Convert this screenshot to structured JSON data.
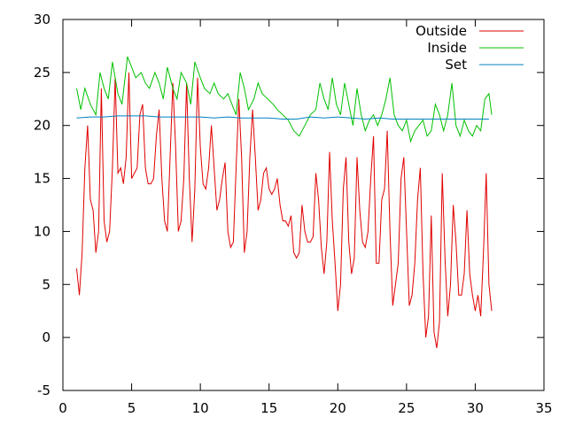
{
  "chart_data": {
    "type": "line",
    "title": "",
    "xlabel": "",
    "ylabel": "",
    "xlim": [
      0,
      35
    ],
    "ylim": [
      -5,
      30
    ],
    "xticks": [
      0,
      5,
      10,
      15,
      20,
      25,
      30,
      35
    ],
    "yticks": [
      -5,
      0,
      5,
      10,
      15,
      20,
      25,
      30
    ],
    "grid": false,
    "legend_position": "top-right",
    "series": [
      {
        "name": "Outside",
        "color": "#e00000",
        "points": [
          [
            1.0,
            6.5
          ],
          [
            1.2,
            4.0
          ],
          [
            1.4,
            8.0
          ],
          [
            1.6,
            16.0
          ],
          [
            1.8,
            20.0
          ],
          [
            2.0,
            13.0
          ],
          [
            2.2,
            12.0
          ],
          [
            2.4,
            8.0
          ],
          [
            2.6,
            10.0
          ],
          [
            2.8,
            23.5
          ],
          [
            3.0,
            11.0
          ],
          [
            3.2,
            9.0
          ],
          [
            3.4,
            10.0
          ],
          [
            3.6,
            16.0
          ],
          [
            3.8,
            24.5
          ],
          [
            4.0,
            15.5
          ],
          [
            4.2,
            16.0
          ],
          [
            4.4,
            14.5
          ],
          [
            4.6,
            17.0
          ],
          [
            4.8,
            25.0
          ],
          [
            5.0,
            15.0
          ],
          [
            5.2,
            15.5
          ],
          [
            5.4,
            16.0
          ],
          [
            5.6,
            21.0
          ],
          [
            5.8,
            22.0
          ],
          [
            6.0,
            16.0
          ],
          [
            6.2,
            14.5
          ],
          [
            6.4,
            14.5
          ],
          [
            6.6,
            15.0
          ],
          [
            6.8,
            19.0
          ],
          [
            7.0,
            21.5
          ],
          [
            7.2,
            15.0
          ],
          [
            7.4,
            11.0
          ],
          [
            7.6,
            10.0
          ],
          [
            7.8,
            17.0
          ],
          [
            8.0,
            24.0
          ],
          [
            8.2,
            18.0
          ],
          [
            8.4,
            10.0
          ],
          [
            8.6,
            11.0
          ],
          [
            8.8,
            15.0
          ],
          [
            9.0,
            24.0
          ],
          [
            9.2,
            15.0
          ],
          [
            9.4,
            9.0
          ],
          [
            9.6,
            14.0
          ],
          [
            9.8,
            24.5
          ],
          [
            10.0,
            18.0
          ],
          [
            10.2,
            14.5
          ],
          [
            10.4,
            14.0
          ],
          [
            10.6,
            16.0
          ],
          [
            10.8,
            20.0
          ],
          [
            11.0,
            16.0
          ],
          [
            11.2,
            12.0
          ],
          [
            11.4,
            13.0
          ],
          [
            11.6,
            15.0
          ],
          [
            11.8,
            16.5
          ],
          [
            12.0,
            10.0
          ],
          [
            12.2,
            8.5
          ],
          [
            12.4,
            9.0
          ],
          [
            12.6,
            16.0
          ],
          [
            12.8,
            22.5
          ],
          [
            13.0,
            17.0
          ],
          [
            13.2,
            8.0
          ],
          [
            13.4,
            10.0
          ],
          [
            13.6,
            17.0
          ],
          [
            13.8,
            21.5
          ],
          [
            14.0,
            17.0
          ],
          [
            14.2,
            12.0
          ],
          [
            14.4,
            13.0
          ],
          [
            14.6,
            15.5
          ],
          [
            14.8,
            16.0
          ],
          [
            15.0,
            14.0
          ],
          [
            15.2,
            13.5
          ],
          [
            15.4,
            14.0
          ],
          [
            15.6,
            15.0
          ],
          [
            15.8,
            12.5
          ],
          [
            16.0,
            11.0
          ],
          [
            16.2,
            11.0
          ],
          [
            16.4,
            10.5
          ],
          [
            16.6,
            11.5
          ],
          [
            16.8,
            8.0
          ],
          [
            17.0,
            7.5
          ],
          [
            17.2,
            8.0
          ],
          [
            17.4,
            12.5
          ],
          [
            17.6,
            10.0
          ],
          [
            17.8,
            9.0
          ],
          [
            18.0,
            9.0
          ],
          [
            18.2,
            9.5
          ],
          [
            18.4,
            15.5
          ],
          [
            18.6,
            13.0
          ],
          [
            18.8,
            8.5
          ],
          [
            19.0,
            6.0
          ],
          [
            19.2,
            9.0
          ],
          [
            19.4,
            17.5
          ],
          [
            19.6,
            11.0
          ],
          [
            19.8,
            7.0
          ],
          [
            20.0,
            2.5
          ],
          [
            20.2,
            5.0
          ],
          [
            20.4,
            14.0
          ],
          [
            20.6,
            17.0
          ],
          [
            20.8,
            9.0
          ],
          [
            21.0,
            6.0
          ],
          [
            21.2,
            7.5
          ],
          [
            21.4,
            17.0
          ],
          [
            21.6,
            12.0
          ],
          [
            21.8,
            9.0
          ],
          [
            22.0,
            8.5
          ],
          [
            22.2,
            10.0
          ],
          [
            22.4,
            15.0
          ],
          [
            22.6,
            19.0
          ],
          [
            22.8,
            7.0
          ],
          [
            23.0,
            7.0
          ],
          [
            23.2,
            13.0
          ],
          [
            23.4,
            14.0
          ],
          [
            23.6,
            19.5
          ],
          [
            23.8,
            10.0
          ],
          [
            24.0,
            3.0
          ],
          [
            24.2,
            5.0
          ],
          [
            24.4,
            7.0
          ],
          [
            24.6,
            15.0
          ],
          [
            24.8,
            17.0
          ],
          [
            25.0,
            10.0
          ],
          [
            25.2,
            3.0
          ],
          [
            25.4,
            4.0
          ],
          [
            25.6,
            7.0
          ],
          [
            25.8,
            13.0
          ],
          [
            26.0,
            16.0
          ],
          [
            26.2,
            6.0
          ],
          [
            26.4,
            0.0
          ],
          [
            26.6,
            2.0
          ],
          [
            26.8,
            11.5
          ],
          [
            27.0,
            0.5
          ],
          [
            27.2,
            -1.0
          ],
          [
            27.4,
            1.5
          ],
          [
            27.6,
            15.5
          ],
          [
            27.8,
            7.5
          ],
          [
            28.0,
            2.0
          ],
          [
            28.2,
            5.0
          ],
          [
            28.4,
            12.5
          ],
          [
            28.6,
            9.0
          ],
          [
            28.8,
            4.0
          ],
          [
            29.0,
            4.0
          ],
          [
            29.2,
            6.0
          ],
          [
            29.4,
            12.0
          ],
          [
            29.6,
            6.0
          ],
          [
            29.8,
            4.0
          ],
          [
            30.0,
            2.5
          ],
          [
            30.2,
            4.0
          ],
          [
            30.4,
            2.0
          ],
          [
            30.6,
            8.0
          ],
          [
            30.8,
            15.5
          ],
          [
            31.0,
            5.0
          ],
          [
            31.2,
            2.5
          ]
        ]
      },
      {
        "name": "Inside",
        "color": "#00c000",
        "points": [
          [
            1.0,
            23.5
          ],
          [
            1.3,
            21.5
          ],
          [
            1.6,
            23.5
          ],
          [
            2.0,
            22.0
          ],
          [
            2.4,
            21.0
          ],
          [
            2.7,
            25.0
          ],
          [
            3.0,
            23.5
          ],
          [
            3.3,
            22.5
          ],
          [
            3.6,
            26.0
          ],
          [
            4.0,
            23.0
          ],
          [
            4.3,
            22.0
          ],
          [
            4.7,
            26.5
          ],
          [
            5.0,
            25.5
          ],
          [
            5.3,
            24.5
          ],
          [
            5.7,
            25.0
          ],
          [
            6.0,
            24.0
          ],
          [
            6.3,
            23.5
          ],
          [
            6.7,
            25.0
          ],
          [
            7.0,
            24.0
          ],
          [
            7.3,
            22.5
          ],
          [
            7.6,
            25.5
          ],
          [
            8.0,
            23.5
          ],
          [
            8.3,
            22.5
          ],
          [
            8.6,
            25.0
          ],
          [
            9.0,
            24.0
          ],
          [
            9.3,
            22.0
          ],
          [
            9.6,
            26.0
          ],
          [
            10.0,
            24.5
          ],
          [
            10.3,
            23.5
          ],
          [
            10.7,
            23.0
          ],
          [
            11.0,
            24.0
          ],
          [
            11.3,
            23.0
          ],
          [
            11.7,
            22.5
          ],
          [
            12.0,
            23.0
          ],
          [
            12.3,
            22.0
          ],
          [
            12.6,
            21.0
          ],
          [
            12.9,
            25.0
          ],
          [
            13.2,
            23.5
          ],
          [
            13.5,
            21.5
          ],
          [
            13.9,
            22.5
          ],
          [
            14.2,
            24.0
          ],
          [
            14.5,
            23.0
          ],
          [
            14.9,
            22.5
          ],
          [
            15.3,
            22.0
          ],
          [
            15.6,
            21.5
          ],
          [
            16.0,
            21.0
          ],
          [
            16.4,
            20.5
          ],
          [
            16.8,
            19.5
          ],
          [
            17.2,
            19.0
          ],
          [
            17.6,
            20.0
          ],
          [
            18.0,
            21.0
          ],
          [
            18.4,
            21.5
          ],
          [
            18.7,
            24.0
          ],
          [
            19.0,
            22.5
          ],
          [
            19.3,
            21.5
          ],
          [
            19.6,
            24.5
          ],
          [
            19.9,
            22.0
          ],
          [
            20.2,
            21.0
          ],
          [
            20.5,
            24.0
          ],
          [
            20.8,
            22.0
          ],
          [
            21.1,
            20.0
          ],
          [
            21.4,
            23.5
          ],
          [
            21.7,
            21.0
          ],
          [
            22.0,
            19.5
          ],
          [
            22.3,
            20.5
          ],
          [
            22.6,
            21.0
          ],
          [
            22.9,
            20.0
          ],
          [
            23.2,
            21.0
          ],
          [
            23.5,
            22.5
          ],
          [
            23.8,
            24.5
          ],
          [
            24.1,
            21.0
          ],
          [
            24.4,
            20.0
          ],
          [
            24.7,
            19.5
          ],
          [
            25.0,
            20.5
          ],
          [
            25.3,
            18.5
          ],
          [
            25.6,
            19.5
          ],
          [
            25.9,
            20.0
          ],
          [
            26.2,
            20.5
          ],
          [
            26.5,
            19.0
          ],
          [
            26.8,
            19.5
          ],
          [
            27.1,
            22.0
          ],
          [
            27.4,
            21.0
          ],
          [
            27.7,
            19.5
          ],
          [
            28.0,
            21.0
          ],
          [
            28.3,
            24.0
          ],
          [
            28.6,
            20.0
          ],
          [
            28.9,
            19.0
          ],
          [
            29.2,
            20.5
          ],
          [
            29.5,
            19.5
          ],
          [
            29.8,
            19.0
          ],
          [
            30.1,
            20.0
          ],
          [
            30.4,
            19.5
          ],
          [
            30.7,
            22.5
          ],
          [
            31.0,
            23.0
          ],
          [
            31.2,
            21.0
          ]
        ]
      },
      {
        "name": "Set",
        "color": "#0080c0",
        "points": [
          [
            1.0,
            20.7
          ],
          [
            2.0,
            20.8
          ],
          [
            3.0,
            20.8
          ],
          [
            4.0,
            20.9
          ],
          [
            5.0,
            20.9
          ],
          [
            6.0,
            20.9
          ],
          [
            7.0,
            20.8
          ],
          [
            8.0,
            20.8
          ],
          [
            9.0,
            20.8
          ],
          [
            10.0,
            20.8
          ],
          [
            11.0,
            20.7
          ],
          [
            12.0,
            20.8
          ],
          [
            13.0,
            20.7
          ],
          [
            14.0,
            20.7
          ],
          [
            15.0,
            20.7
          ],
          [
            16.0,
            20.6
          ],
          [
            17.0,
            20.6
          ],
          [
            18.0,
            20.8
          ],
          [
            19.0,
            20.7
          ],
          [
            20.0,
            20.8
          ],
          [
            21.0,
            20.7
          ],
          [
            22.0,
            20.6
          ],
          [
            23.0,
            20.7
          ],
          [
            24.0,
            20.6
          ],
          [
            25.0,
            20.6
          ],
          [
            26.0,
            20.6
          ],
          [
            27.0,
            20.6
          ],
          [
            28.0,
            20.6
          ],
          [
            29.0,
            20.6
          ],
          [
            30.0,
            20.6
          ],
          [
            31.0,
            20.6
          ]
        ]
      }
    ]
  }
}
